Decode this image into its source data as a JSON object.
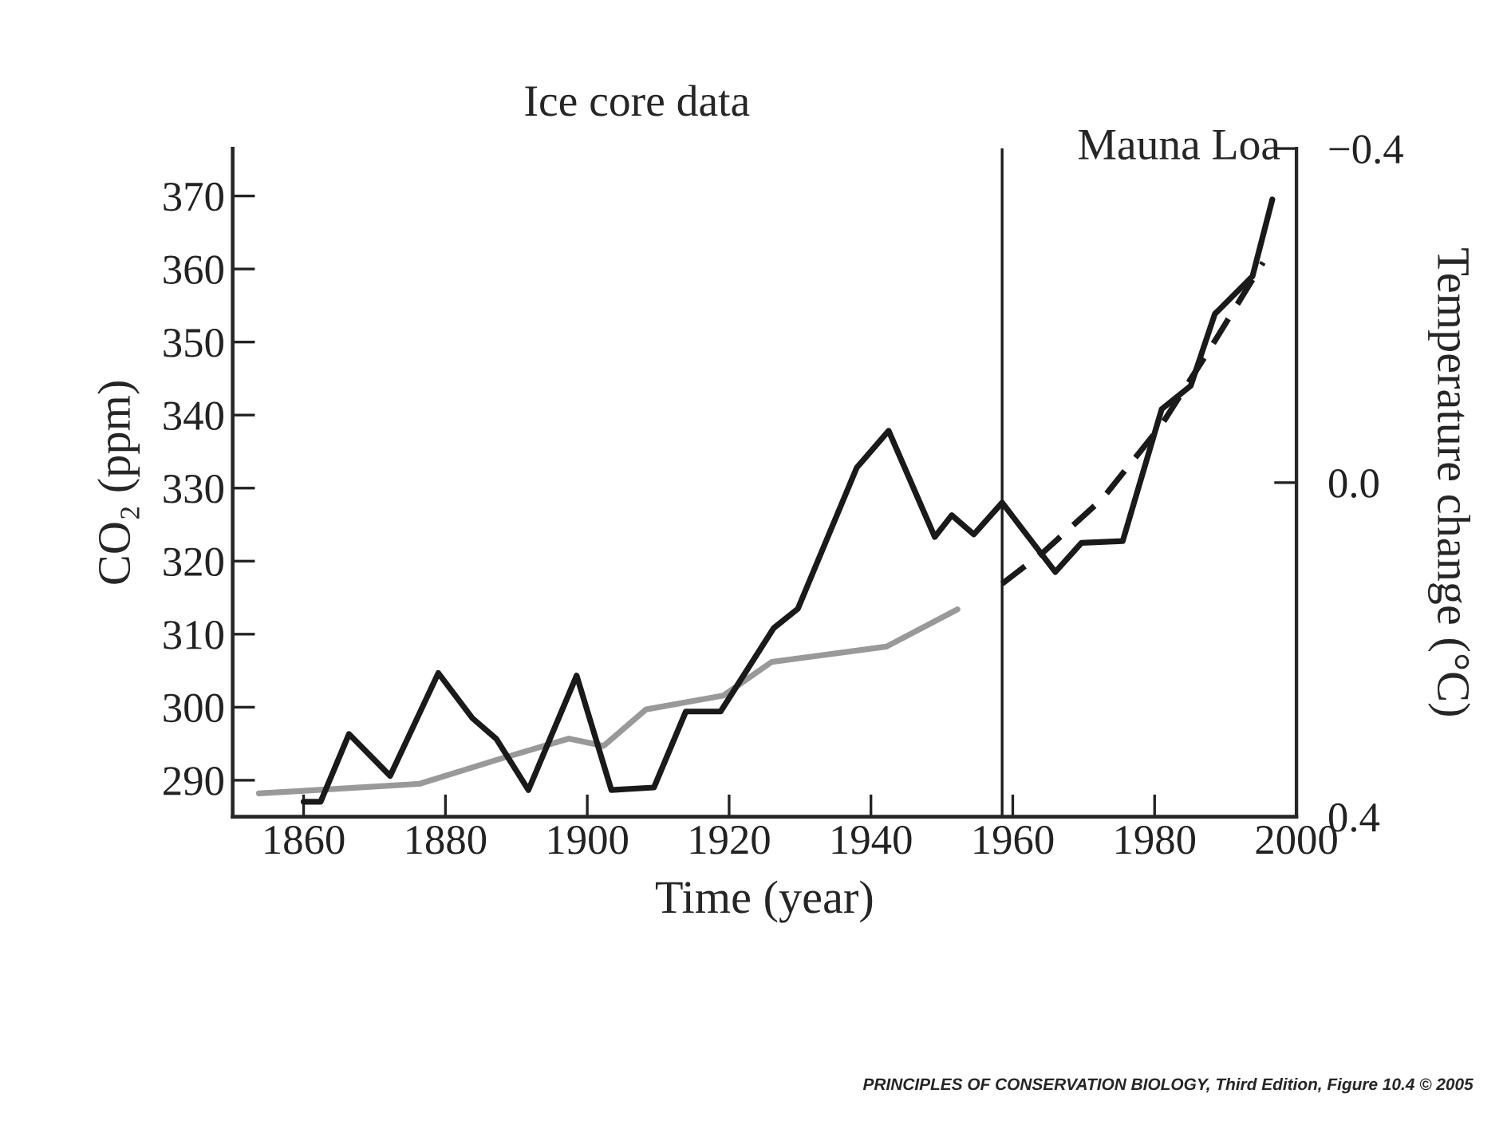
{
  "chart_data": {
    "type": "line",
    "xlabel": "Time (year)",
    "ylabel": "CO₂ (ppm)",
    "y2label": "Temperature change (°C)",
    "annotations": [
      "Ice core data",
      "Mauna Loa",
      "PRINCIPLES OF CONSERVATION BIOLOGY, Third Edition, Figure 10.4 © 2005"
    ],
    "xlim": [
      1850,
      2000
    ],
    "xticks": [
      1860,
      1880,
      1900,
      1920,
      1940,
      1960,
      1980,
      2000
    ],
    "ylim": [
      285,
      376.5
    ],
    "yticks": [
      290,
      300,
      310,
      320,
      330,
      340,
      350,
      360,
      370
    ],
    "y2lim": [
      0.4,
      -0.4
    ],
    "y2ticks": [
      {
        "value": -0.4,
        "label": "−0.4"
      },
      {
        "value": 0.0,
        "label": "0.0"
      },
      {
        "value": 0.4,
        "label": "0.4"
      }
    ],
    "ref_lines": [
      {
        "axis": "x",
        "value": 1958.5,
        "color": "#1a1a1a"
      }
    ],
    "series": [
      {
        "color": "#999999",
        "line_style": "solid",
        "x": [
          1853.7,
          1862.4,
          1876.3,
          1887.6,
          1897.4,
          1902.3,
          1908.3,
          1919.2,
          1926,
          1942.2,
          1952.2
        ],
        "values": [
          288.2,
          288.7,
          289.5,
          292.9,
          295.7,
          294.7,
          299.7,
          301.6,
          306.2,
          308.3,
          313.4
        ]
      },
      {
        "color": "#1a1a1a",
        "line_style": "solid",
        "axis": "y2",
        "x": [
          1860,
          1862.4,
          1866.4,
          1872.2,
          1879,
          1883.8,
          1887.2,
          1891.7,
          1898.5,
          1903.4,
          1909.4,
          1913.9,
          1918.8,
          1926.3,
          1929.7,
          1938,
          1942.5,
          1949,
          1951.4,
          1954.5,
          1958.5,
          1966,
          1969.7,
          1975.5,
          1981,
          1985.1,
          1988.5,
          1993.8,
          1996.6
        ],
        "values": [
          0.382,
          0.382,
          0.301,
          0.351,
          0.228,
          0.282,
          0.307,
          0.368,
          0.231,
          0.368,
          0.365,
          0.274,
          0.274,
          0.174,
          0.151,
          -0.018,
          -0.062,
          0.065,
          0.039,
          0.062,
          0.024,
          0.107,
          0.072,
          0.07,
          -0.088,
          -0.116,
          -0.202,
          -0.247,
          -0.339
        ]
      },
      {
        "color": "#1a1a1a",
        "line_style": "dashed",
        "x": [
          1958.5,
          1964.4,
          1972.7,
          1981,
          1987.7,
          1995.3
        ],
        "values": [
          316.9,
          321.3,
          328.6,
          338.7,
          348.9,
          360.9
        ]
      }
    ]
  }
}
